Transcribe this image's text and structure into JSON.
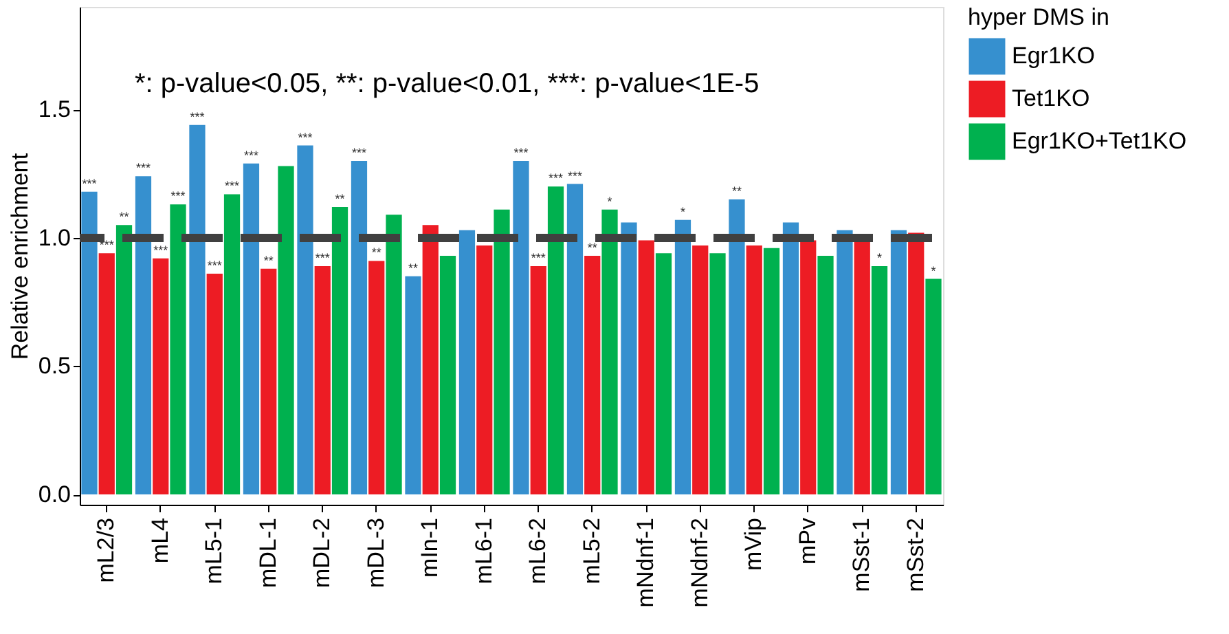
{
  "chart_data": {
    "type": "bar",
    "ylabel": "Relative enrichment",
    "legend_title": "hyper DMS in",
    "legend": "right",
    "grid": false,
    "annotations": [
      "*: p-value<0.05, **: p-value<0.01, ***: p-value<1E-5"
    ],
    "categories": [
      "mL2/3",
      "mL4",
      "mL5-1",
      "mDL-1",
      "mDL-2",
      "mDL-3",
      "mIn-1",
      "mL6-1",
      "mL6-2",
      "mL5-2",
      "mNdnf-1",
      "mNdnf-2",
      "mVip",
      "mPv",
      "mSst-1",
      "mSst-2"
    ],
    "ylim": [
      -0.04,
      1.9
    ],
    "yticks": [
      {
        "value": 0,
        "label": "0.0"
      },
      {
        "value": 0.5,
        "label": "0.5"
      },
      {
        "value": 1,
        "label": "1.0"
      },
      {
        "value": 1.5,
        "label": "1.5"
      }
    ],
    "ref_lines": [
      {
        "axis": "y",
        "value": 1,
        "label": null,
        "color": "#404040",
        "line_style": "dashed"
      }
    ],
    "series": [
      {
        "name": "Egr1KO",
        "color": "#3690cf",
        "values": [
          1.18,
          1.24,
          1.44,
          1.29,
          1.36,
          1.3,
          0.85,
          1.03,
          1.3,
          1.21,
          1.06,
          1.07,
          1.15,
          1.06,
          1.03,
          1.03
        ],
        "value_labels": [
          "***",
          "***",
          "***",
          "***",
          "***",
          "***",
          "**",
          null,
          "***",
          "***",
          null,
          "*",
          "**",
          null,
          null,
          null
        ]
      },
      {
        "name": "Tet1KO",
        "color": "#ed1c24",
        "values": [
          0.94,
          0.92,
          0.86,
          0.88,
          0.89,
          0.91,
          1.05,
          0.97,
          0.89,
          0.93,
          0.99,
          0.97,
          0.97,
          0.99,
          1.0,
          1.02
        ],
        "value_labels": [
          "***",
          "***",
          "***",
          "**",
          "***",
          "**",
          null,
          null,
          "***",
          "**",
          null,
          null,
          null,
          null,
          null,
          null
        ]
      },
      {
        "name": "Egr1KO+Tet1KO",
        "color": "#00b14f",
        "values": [
          1.05,
          1.13,
          1.17,
          1.28,
          1.12,
          1.09,
          0.93,
          1.11,
          1.2,
          1.11,
          0.94,
          0.94,
          0.96,
          0.93,
          0.89,
          0.84
        ],
        "value_labels": [
          "**",
          "***",
          "***",
          null,
          "**",
          null,
          null,
          null,
          "***",
          "*",
          null,
          null,
          null,
          null,
          "*",
          "*"
        ]
      }
    ]
  }
}
